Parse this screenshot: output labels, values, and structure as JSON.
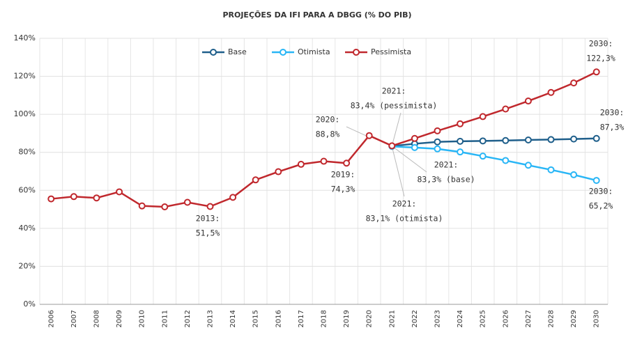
{
  "chart_data": {
    "type": "line",
    "title": "PROJEÇÕES DA IFI PARA A DBGG (% DO PIB)",
    "categories": [
      "2006",
      "2007",
      "2008",
      "2009",
      "2010",
      "2011",
      "2012",
      "2013",
      "2014",
      "2015",
      "2016",
      "2017",
      "2018",
      "2019",
      "2020",
      "2021",
      "2022",
      "2023",
      "2024",
      "2025",
      "2026",
      "2027",
      "2028",
      "2029",
      "2030"
    ],
    "series": [
      {
        "name": "Base",
        "color": "#1f5f8b",
        "values": [
          null,
          null,
          null,
          null,
          null,
          null,
          null,
          null,
          null,
          null,
          null,
          null,
          null,
          null,
          null,
          83.3,
          84.5,
          85.5,
          85.8,
          86.0,
          86.2,
          86.5,
          86.7,
          87.0,
          87.3
        ]
      },
      {
        "name": "Otimista",
        "color": "#29b6f6",
        "values": [
          null,
          null,
          null,
          null,
          null,
          null,
          null,
          null,
          null,
          null,
          null,
          null,
          null,
          null,
          null,
          83.1,
          82.5,
          81.8,
          80.2,
          78.0,
          75.7,
          73.2,
          70.8,
          68.2,
          65.2
        ]
      },
      {
        "name": "Pessimista",
        "color": "#c0282d",
        "values": [
          55.5,
          56.7,
          56.0,
          59.2,
          51.8,
          51.3,
          53.7,
          51.5,
          56.3,
          65.5,
          69.8,
          73.7,
          75.3,
          74.3,
          88.8,
          83.4,
          87.3,
          91.3,
          95.0,
          98.8,
          102.8,
          107.0,
          111.5,
          116.5,
          122.3
        ]
      }
    ],
    "ylim": [
      0,
      140
    ],
    "yticks": [
      {
        "value": 0,
        "label": "0%"
      },
      {
        "value": 20,
        "label": "20%"
      },
      {
        "value": 40,
        "label": "40%"
      },
      {
        "value": 60,
        "label": "60%"
      },
      {
        "value": 80,
        "label": "80%"
      },
      {
        "value": 100,
        "label": "100%"
      },
      {
        "value": 120,
        "label": "120%"
      },
      {
        "value": 140,
        "label": "140%"
      }
    ],
    "grid": true,
    "legend": "top",
    "annotations": [
      [
        "2030:",
        "122,3%"
      ],
      [
        "2021:",
        "83,4% (pessimista)"
      ],
      [
        "2020:",
        "88,8%"
      ],
      [
        "2019:",
        "74,3%"
      ],
      [
        "2013:",
        "51,5%"
      ],
      [
        "2021:",
        "83,3% (base)"
      ],
      [
        "2021:",
        "83,1% (otimista)"
      ],
      [
        "2030:",
        "87,3%"
      ],
      [
        "2030:",
        "65,2%"
      ]
    ]
  }
}
